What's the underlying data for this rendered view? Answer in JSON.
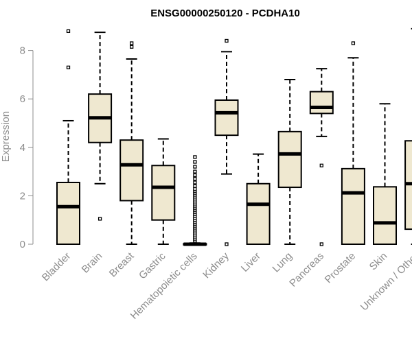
{
  "chart_data": {
    "type": "boxplot",
    "title": "ENSG00000250120 - PCDHA10",
    "xlabel": "",
    "ylabel": "Expression",
    "ylim": [
      0,
      9
    ],
    "yticks": [
      0,
      2,
      4,
      6,
      8
    ],
    "grid": false,
    "box_fill": "#efe8d0",
    "categories": [
      "Bladder",
      "Brain",
      "Breast",
      "Gastric",
      "Hematopoietic cells",
      "Kidney",
      "Liver",
      "Lung",
      "Pancreas",
      "Prostate",
      "Skin",
      "Unknown / Other"
    ],
    "boxes": [
      {
        "category": "Bladder",
        "whisker_low": 0,
        "q1": 0,
        "median": 1.55,
        "q3": 2.55,
        "whisker_high": 5.1,
        "outliers": [
          7.3,
          8.8
        ]
      },
      {
        "category": "Brain",
        "whisker_low": 2.5,
        "q1": 4.2,
        "median": 5.22,
        "q3": 6.2,
        "whisker_high": 8.75,
        "outliers": [
          1.05
        ]
      },
      {
        "category": "Breast",
        "whisker_low": 0,
        "q1": 1.8,
        "median": 3.28,
        "q3": 4.3,
        "whisker_high": 7.65,
        "outliers": [
          8.15,
          8.3
        ]
      },
      {
        "category": "Gastric",
        "whisker_low": 0,
        "q1": 1.0,
        "median": 2.35,
        "q3": 3.25,
        "whisker_high": 4.35,
        "outliers": []
      },
      {
        "category": "Hematopoietic cells",
        "whisker_low": 0,
        "q1": 0,
        "median": 0,
        "q3": 0.02,
        "whisker_high": 0.05,
        "outliers": [
          0.12,
          0.2,
          0.28,
          0.36,
          0.44,
          0.52,
          0.6,
          0.68,
          0.76,
          0.84,
          0.92,
          1.0,
          1.08,
          1.16,
          1.24,
          1.32,
          1.4,
          1.48,
          1.56,
          1.64,
          1.72,
          1.8,
          1.88,
          1.96,
          2.04,
          2.12,
          2.2,
          2.28,
          2.4,
          2.55,
          2.7,
          2.85,
          3.0,
          3.2,
          3.4,
          3.6
        ]
      },
      {
        "category": "Kidney",
        "whisker_low": 2.9,
        "q1": 4.5,
        "median": 5.43,
        "q3": 5.95,
        "whisker_high": 7.95,
        "outliers": [
          0,
          8.4
        ]
      },
      {
        "category": "Liver",
        "whisker_low": 0,
        "q1": 0,
        "median": 1.65,
        "q3": 2.5,
        "whisker_high": 3.72,
        "outliers": []
      },
      {
        "category": "Lung",
        "whisker_low": 0,
        "q1": 2.35,
        "median": 3.73,
        "q3": 4.65,
        "whisker_high": 6.8,
        "outliers": []
      },
      {
        "category": "Pancreas",
        "whisker_low": 4.45,
        "q1": 5.4,
        "median": 5.65,
        "q3": 6.3,
        "whisker_high": 7.25,
        "outliers": [
          3.25,
          0
        ]
      },
      {
        "category": "Prostate",
        "whisker_low": 0,
        "q1": 0,
        "median": 2.12,
        "q3": 3.12,
        "whisker_high": 7.7,
        "outliers": [
          8.3
        ]
      },
      {
        "category": "Skin",
        "whisker_low": 0,
        "q1": 0,
        "median": 0.88,
        "q3": 2.37,
        "whisker_high": 5.8,
        "outliers": []
      },
      {
        "category": "Unknown / Other",
        "whisker_low": 0,
        "q1": 0.62,
        "median": 2.5,
        "q3": 4.27,
        "whisker_high": 8.9,
        "outliers": []
      }
    ]
  }
}
